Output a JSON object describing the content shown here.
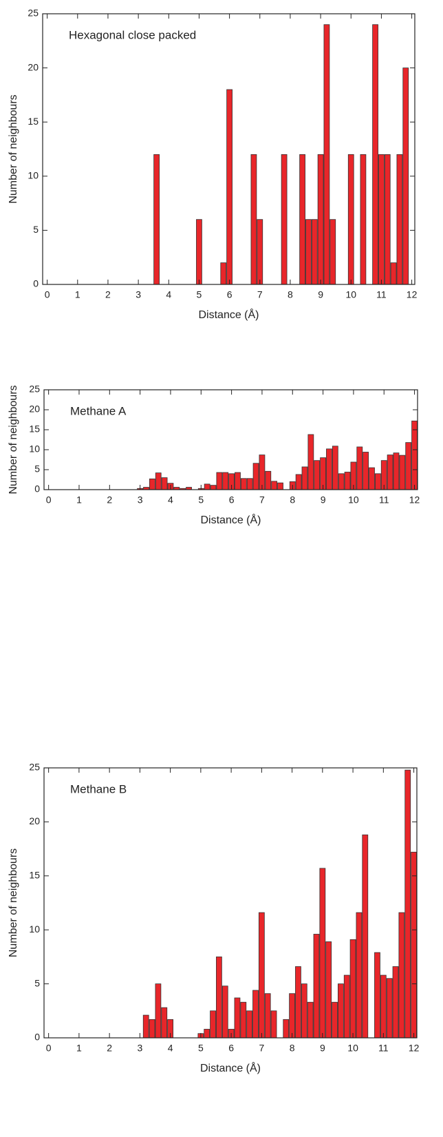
{
  "chart_data": [
    {
      "type": "bar",
      "title": "Hexagonal close packed",
      "xlabel": "Distance (Å)",
      "ylabel": "Number of neighbours",
      "color": "#e8262a",
      "x": [
        3.6,
        5.0,
        5.8,
        6.0,
        6.8,
        7.0,
        7.8,
        8.4,
        8.6,
        8.8,
        9.0,
        9.2,
        9.4,
        10.0,
        10.4,
        10.8,
        11.0,
        11.2,
        11.4,
        11.6,
        11.8
      ],
      "values": [
        12,
        6,
        2,
        18,
        12,
        6,
        12,
        12,
        6,
        6,
        12,
        24,
        6,
        12,
        12,
        24,
        12,
        12,
        2,
        12,
        20
      ],
      "xlim": [
        -0.15,
        12.1
      ],
      "ylim": [
        0,
        25
      ],
      "xticks": [
        0,
        1,
        2,
        3,
        4,
        5,
        6,
        7,
        8,
        9,
        10,
        11,
        12
      ],
      "yticks": [
        0,
        5,
        10,
        15,
        20,
        25
      ]
    },
    {
      "type": "bar",
      "title": "Methane A",
      "xlabel": "Distance (Å)",
      "ylabel": "Number of neighbours",
      "color": "#e8262a",
      "x": [
        3.0,
        3.2,
        3.4,
        3.6,
        3.8,
        4.0,
        4.2,
        4.4,
        4.6,
        5.0,
        5.2,
        5.4,
        5.6,
        5.8,
        6.0,
        6.2,
        6.4,
        6.6,
        6.8,
        7.0,
        7.2,
        7.4,
        7.6,
        8.0,
        8.2,
        8.4,
        8.6,
        8.8,
        9.0,
        9.2,
        9.4,
        9.6,
        9.8,
        10.0,
        10.2,
        10.4,
        10.6,
        10.8,
        11.0,
        11.2,
        11.4,
        11.6,
        11.8,
        12.0
      ],
      "values": [
        0.3,
        0.6,
        2.7,
        4.2,
        3.0,
        1.6,
        0.6,
        0.3,
        0.6,
        0.3,
        1.4,
        1.1,
        4.3,
        4.3,
        4.0,
        4.3,
        2.8,
        2.8,
        6.6,
        8.7,
        4.6,
        2.1,
        1.7,
        2.0,
        3.8,
        5.7,
        13.8,
        7.3,
        8.0,
        10.2,
        10.9,
        4.0,
        4.4,
        6.9,
        10.7,
        9.4,
        5.5,
        4.0,
        7.3,
        8.7,
        9.2,
        8.6,
        11.8,
        17.2
      ],
      "xlim": [
        -0.15,
        12.1
      ],
      "ylim": [
        0,
        25
      ],
      "xticks": [
        0,
        1,
        2,
        3,
        4,
        5,
        6,
        7,
        8,
        9,
        10,
        11,
        12
      ],
      "yticks": [
        0,
        5,
        10,
        15,
        20,
        25
      ]
    },
    {
      "type": "bar",
      "title": "Methane B",
      "xlabel": "Distance (Å)",
      "ylabel": "Number of neighbours",
      "color": "#e8262a",
      "x": [
        3.2,
        3.4,
        3.6,
        3.8,
        4.0,
        5.0,
        5.2,
        5.4,
        5.6,
        5.8,
        6.0,
        6.2,
        6.4,
        6.6,
        6.8,
        7.0,
        7.2,
        7.4,
        7.8,
        8.0,
        8.2,
        8.4,
        8.6,
        8.8,
        9.0,
        9.2,
        9.4,
        9.6,
        9.8,
        10.0,
        10.2,
        10.4,
        10.8,
        11.0,
        11.2,
        11.4,
        11.6,
        11.8,
        12.0
      ],
      "values": [
        2.1,
        1.7,
        5.0,
        2.8,
        1.7,
        0.4,
        0.8,
        2.5,
        7.5,
        4.8,
        0.8,
        3.7,
        3.3,
        2.5,
        4.4,
        11.6,
        4.1,
        2.5,
        1.7,
        4.1,
        6.6,
        5.0,
        3.3,
        9.6,
        15.7,
        8.9,
        3.3,
        5.0,
        5.8,
        9.1,
        11.6,
        18.8,
        7.9,
        5.8,
        5.5,
        6.6,
        11.6,
        24.8,
        17.2
      ],
      "xlim": [
        -0.15,
        12.1
      ],
      "ylim": [
        0,
        25
      ],
      "xticks": [
        0,
        1,
        2,
        3,
        4,
        5,
        6,
        7,
        8,
        9,
        10,
        11,
        12
      ],
      "yticks": [
        0,
        5,
        10,
        15,
        20,
        25
      ]
    }
  ]
}
